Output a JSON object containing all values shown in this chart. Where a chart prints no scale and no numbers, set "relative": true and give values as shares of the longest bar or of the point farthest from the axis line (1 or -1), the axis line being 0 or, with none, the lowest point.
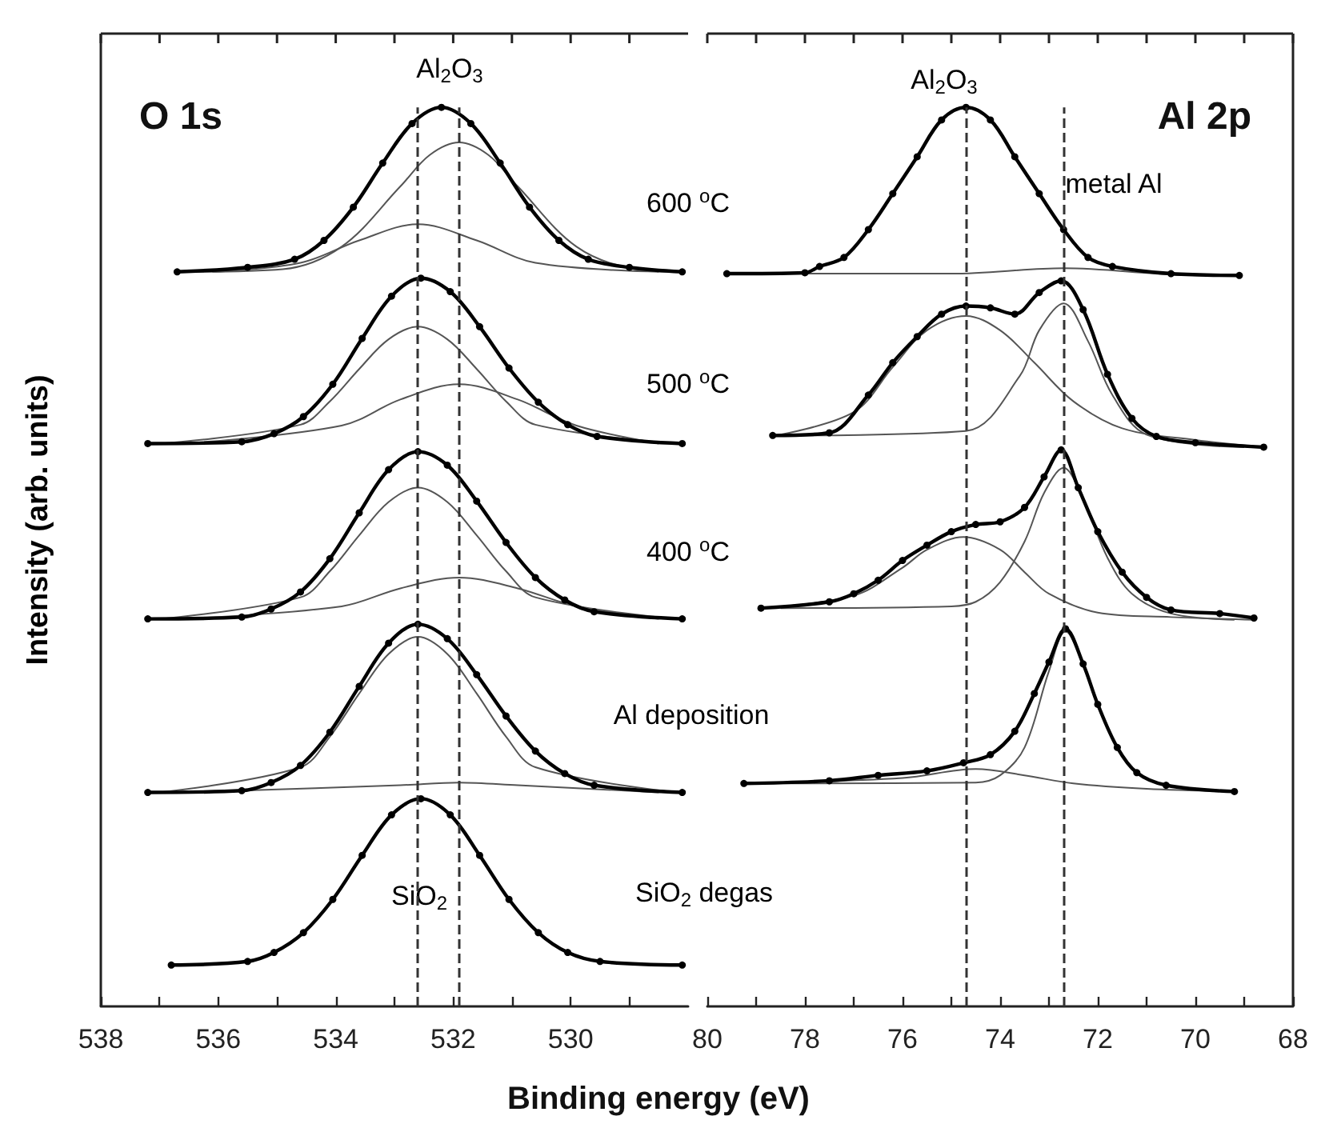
{
  "chart_data": [
    {
      "type": "line",
      "title": "O 1s",
      "ylabel": "Intensity (arb. units)",
      "xlabel": "Binding energy (eV)",
      "relative": true,
      "grid": false,
      "xlim": [
        538,
        528
      ],
      "xticks": [
        538,
        {
          "value": 537,
          "label": null
        },
        536,
        {
          "value": 535,
          "label": null
        },
        534,
        {
          "value": 533,
          "label": null
        },
        532,
        {
          "value": 531,
          "label": null
        },
        530,
        {
          "value": 529,
          "label": null
        }
      ],
      "ref_lines": [
        {
          "axis": "x",
          "value": 532.6,
          "color": "#333333",
          "line_style": "dashed"
        },
        {
          "axis": "x",
          "value": 531.9,
          "color": "#333333",
          "line_style": "dashed"
        }
      ],
      "annotations": [
        "Al$_{2}$O$_{3}$",
        "SiO$_{2}$",
        "600 $^{o}$C",
        "500 $^{o}$C",
        "400 $^{o}$C",
        "Al deposition",
        "SiO$_{2}$ degas"
      ],
      "series": [
        {
          "color": "#000000",
          "marker": "circle",
          "x": [
            536.7,
            535.5,
            534.7,
            534.2,
            533.7,
            533.2,
            532.7,
            532.2,
            531.7,
            531.2,
            530.7,
            530.2,
            529.7,
            529.0,
            528.1
          ],
          "values": [
            0.817,
            0.822,
            0.831,
            0.852,
            0.889,
            0.938,
            0.982,
            1.0,
            0.982,
            0.938,
            0.889,
            0.852,
            0.831,
            0.822,
            0.817
          ]
        },
        {
          "color": "#555555",
          "marker": "none",
          "x": [
            536.5,
            534.9,
            533.9,
            532.9,
            532.4,
            531.9,
            531.4,
            530.9,
            529.9,
            528.9,
            528.1
          ],
          "values": [
            0.817,
            0.82,
            0.845,
            0.912,
            0.947,
            0.961,
            0.947,
            0.912,
            0.845,
            0.82,
            0.817
          ]
        },
        {
          "color": "#555555",
          "marker": "none",
          "x": [
            536.1,
            534.6,
            533.6,
            532.6,
            531.6,
            530.6,
            528.5
          ],
          "values": [
            0.817,
            0.827,
            0.852,
            0.87,
            0.852,
            0.827,
            0.817
          ]
        },
        {
          "color": "#000000",
          "marker": "circle",
          "x": [
            537.2,
            535.6,
            535.05,
            534.55,
            534.05,
            533.55,
            533.05,
            532.55,
            532.05,
            531.55,
            531.05,
            530.55,
            530.05,
            529.55,
            528.1
          ],
          "values": [
            0.626,
            0.628,
            0.637,
            0.656,
            0.692,
            0.743,
            0.79,
            0.81,
            0.795,
            0.756,
            0.71,
            0.672,
            0.647,
            0.634,
            0.626
          ]
        },
        {
          "color": "#555555",
          "marker": "none",
          "x": [
            537.0,
            534.6,
            534.1,
            533.6,
            533.1,
            532.6,
            532.1,
            531.6,
            531.1,
            530.6,
            528.2
          ],
          "values": [
            0.626,
            0.647,
            0.673,
            0.709,
            0.742,
            0.756,
            0.742,
            0.709,
            0.673,
            0.647,
            0.626
          ]
        },
        {
          "color": "#555555",
          "marker": "none",
          "x": [
            536.6,
            533.9,
            532.9,
            531.9,
            530.9,
            529.9,
            528.5
          ],
          "values": [
            0.626,
            0.646,
            0.675,
            0.692,
            0.675,
            0.646,
            0.626
          ]
        },
        {
          "color": "#000000",
          "marker": "circle",
          "x": [
            537.2,
            535.6,
            535.1,
            534.6,
            534.1,
            533.6,
            533.1,
            532.6,
            532.1,
            531.6,
            531.1,
            530.6,
            530.1,
            529.6,
            528.1
          ],
          "values": [
            0.431,
            0.433,
            0.442,
            0.461,
            0.498,
            0.549,
            0.597,
            0.617,
            0.602,
            0.562,
            0.516,
            0.477,
            0.452,
            0.439,
            0.431
          ]
        },
        {
          "color": "#555555",
          "marker": "none",
          "x": [
            537.0,
            534.6,
            534.1,
            533.6,
            533.1,
            532.6,
            532.1,
            531.6,
            531.1,
            530.6,
            528.2
          ],
          "values": [
            0.431,
            0.455,
            0.484,
            0.524,
            0.561,
            0.577,
            0.561,
            0.524,
            0.484,
            0.455,
            0.431
          ]
        },
        {
          "color": "#555555",
          "marker": "none",
          "x": [
            536.6,
            533.9,
            532.9,
            531.9,
            530.9,
            529.9,
            528.5
          ],
          "values": [
            0.431,
            0.445,
            0.465,
            0.477,
            0.465,
            0.445,
            0.431
          ]
        },
        {
          "color": "#000000",
          "marker": "circle",
          "x": [
            537.2,
            535.6,
            535.1,
            534.6,
            534.1,
            533.6,
            533.1,
            532.6,
            532.1,
            531.6,
            531.1,
            530.6,
            530.1,
            529.6,
            528.1
          ],
          "values": [
            0.238,
            0.24,
            0.249,
            0.268,
            0.305,
            0.356,
            0.404,
            0.425,
            0.409,
            0.369,
            0.323,
            0.284,
            0.259,
            0.246,
            0.238
          ]
        },
        {
          "color": "#555555",
          "marker": "none",
          "x": [
            537.0,
            534.6,
            534.1,
            533.6,
            533.1,
            532.6,
            532.1,
            531.6,
            531.1,
            530.6,
            528.2
          ],
          "values": [
            0.238,
            0.266,
            0.3,
            0.348,
            0.392,
            0.411,
            0.392,
            0.348,
            0.3,
            0.266,
            0.238
          ]
        },
        {
          "color": "#555555",
          "marker": "none",
          "x": [
            536.6,
            532.9,
            531.9,
            530.9,
            528.5
          ],
          "values": [
            0.238,
            0.246,
            0.249,
            0.246,
            0.238
          ]
        },
        {
          "color": "#000000",
          "marker": "circle",
          "x": [
            536.8,
            535.5,
            535.05,
            534.55,
            534.05,
            533.55,
            533.05,
            532.55,
            532.05,
            531.55,
            531.05,
            530.55,
            530.05,
            529.5,
            528.1
          ],
          "values": [
            0.046,
            0.05,
            0.06,
            0.082,
            0.119,
            0.168,
            0.213,
            0.231,
            0.213,
            0.168,
            0.119,
            0.082,
            0.06,
            0.05,
            0.046
          ]
        }
      ]
    },
    {
      "type": "line",
      "title": "Al 2p",
      "relative": true,
      "grid": false,
      "xlim": [
        80,
        68
      ],
      "xticks": [
        80,
        {
          "value": 79,
          "label": null
        },
        78,
        {
          "value": 77,
          "label": null
        },
        76,
        {
          "value": 75,
          "label": null
        },
        74,
        {
          "value": 73,
          "label": null
        },
        72,
        {
          "value": 71,
          "label": null
        },
        70,
        {
          "value": 69,
          "label": null
        },
        68
      ],
      "ref_lines": [
        {
          "axis": "x",
          "value": 74.7,
          "color": "#333333",
          "line_style": "dashed"
        },
        {
          "axis": "x",
          "value": 72.7,
          "color": "#333333",
          "line_style": "dashed"
        }
      ],
      "annotations": [
        "Al$_{2}$O$_{3}$",
        "metal Al"
      ],
      "series": [
        {
          "color": "#000000",
          "marker": "circle",
          "x": [
            79.6,
            78.0,
            77.7,
            77.2,
            76.7,
            76.2,
            75.7,
            75.2,
            74.7,
            74.2,
            73.7,
            73.2,
            72.7,
            72.2,
            71.7,
            70.5,
            69.1
          ],
          "values": [
            0.815,
            0.816,
            0.823,
            0.833,
            0.864,
            0.904,
            0.945,
            0.986,
            1.0,
            0.986,
            0.945,
            0.904,
            0.864,
            0.833,
            0.823,
            0.815,
            0.813
          ]
        },
        {
          "color": "#555555",
          "marker": "none",
          "x": [
            79.2,
            75.0,
            72.7,
            70.5,
            69.4
          ],
          "values": [
            0.815,
            0.815,
            0.821,
            0.814,
            0.813
          ]
        },
        {
          "color": "#000000",
          "marker": "circle",
          "x": [
            78.66,
            77.5,
            76.7,
            76.2,
            75.7,
            75.2,
            74.7,
            74.2,
            73.7,
            73.2,
            72.75,
            72.3,
            71.8,
            71.3,
            70.8,
            70.0,
            68.6
          ],
          "values": [
            0.635,
            0.638,
            0.68,
            0.716,
            0.745,
            0.77,
            0.779,
            0.777,
            0.77,
            0.794,
            0.807,
            0.775,
            0.703,
            0.654,
            0.634,
            0.627,
            0.622
          ]
        },
        {
          "color": "#555555",
          "marker": "none",
          "x": [
            78.6,
            77.0,
            76.2,
            75.5,
            74.7,
            74.0,
            73.3,
            72.5,
            71.5,
            70.0,
            68.6
          ],
          "values": [
            0.635,
            0.661,
            0.711,
            0.752,
            0.768,
            0.752,
            0.716,
            0.673,
            0.643,
            0.63,
            0.622
          ]
        },
        {
          "color": "#555555",
          "marker": "none",
          "x": [
            78.2,
            74.7,
            73.6,
            73.2,
            72.7,
            72.2,
            71.7,
            71.0,
            69.0
          ],
          "values": [
            0.635,
            0.64,
            0.701,
            0.752,
            0.782,
            0.74,
            0.68,
            0.636,
            0.622
          ]
        },
        {
          "color": "#000000",
          "marker": "circle",
          "x": [
            78.9,
            77.5,
            77.0,
            76.5,
            76.0,
            75.5,
            75.0,
            74.5,
            74.0,
            73.5,
            73.1,
            72.75,
            72.4,
            72.0,
            71.5,
            71.0,
            70.5,
            69.5,
            68.8
          ],
          "values": [
            0.443,
            0.45,
            0.459,
            0.474,
            0.496,
            0.513,
            0.528,
            0.536,
            0.539,
            0.555,
            0.589,
            0.619,
            0.577,
            0.528,
            0.483,
            0.455,
            0.441,
            0.437,
            0.432
          ]
        },
        {
          "color": "#555555",
          "marker": "none",
          "x": [
            78.9,
            77.0,
            76.0,
            75.5,
            74.75,
            74.0,
            73.5,
            73.0,
            72.0,
            70.5,
            68.8
          ],
          "values": [
            0.443,
            0.457,
            0.488,
            0.508,
            0.522,
            0.508,
            0.483,
            0.459,
            0.438,
            0.433,
            0.43
          ]
        },
        {
          "color": "#555555",
          "marker": "none",
          "x": [
            78.5,
            75.0,
            74.5,
            74.0,
            73.5,
            73.1,
            72.7,
            72.3,
            71.8,
            71.3,
            70.5,
            69.2
          ],
          "values": [
            0.443,
            0.445,
            0.45,
            0.472,
            0.517,
            0.571,
            0.599,
            0.564,
            0.499,
            0.459,
            0.437,
            0.43
          ]
        },
        {
          "color": "#000000",
          "marker": "circle",
          "x": [
            79.25,
            77.5,
            76.5,
            75.5,
            74.75,
            74.2,
            73.7,
            73.3,
            73.0,
            72.66,
            72.3,
            72.0,
            71.6,
            71.2,
            70.6,
            69.2
          ],
          "values": [
            0.248,
            0.251,
            0.257,
            0.262,
            0.271,
            0.28,
            0.306,
            0.348,
            0.383,
            0.42,
            0.381,
            0.336,
            0.288,
            0.26,
            0.246,
            0.239
          ]
        },
        {
          "color": "#555555",
          "marker": "none",
          "x": [
            79.25,
            76.0,
            74.5,
            73.5,
            72.5,
            71.0,
            69.2
          ],
          "values": [
            0.248,
            0.254,
            0.264,
            0.257,
            0.248,
            0.242,
            0.239
          ]
        },
        {
          "color": "#555555",
          "marker": "none",
          "x": [
            78.8,
            74.5,
            74.0,
            73.5,
            73.0,
            72.66,
            72.3,
            72.0,
            71.6,
            71.2,
            70.6,
            69.5
          ],
          "values": [
            0.248,
            0.249,
            0.257,
            0.288,
            0.373,
            0.417,
            0.381,
            0.336,
            0.288,
            0.26,
            0.246,
            0.239
          ]
        }
      ]
    }
  ]
}
